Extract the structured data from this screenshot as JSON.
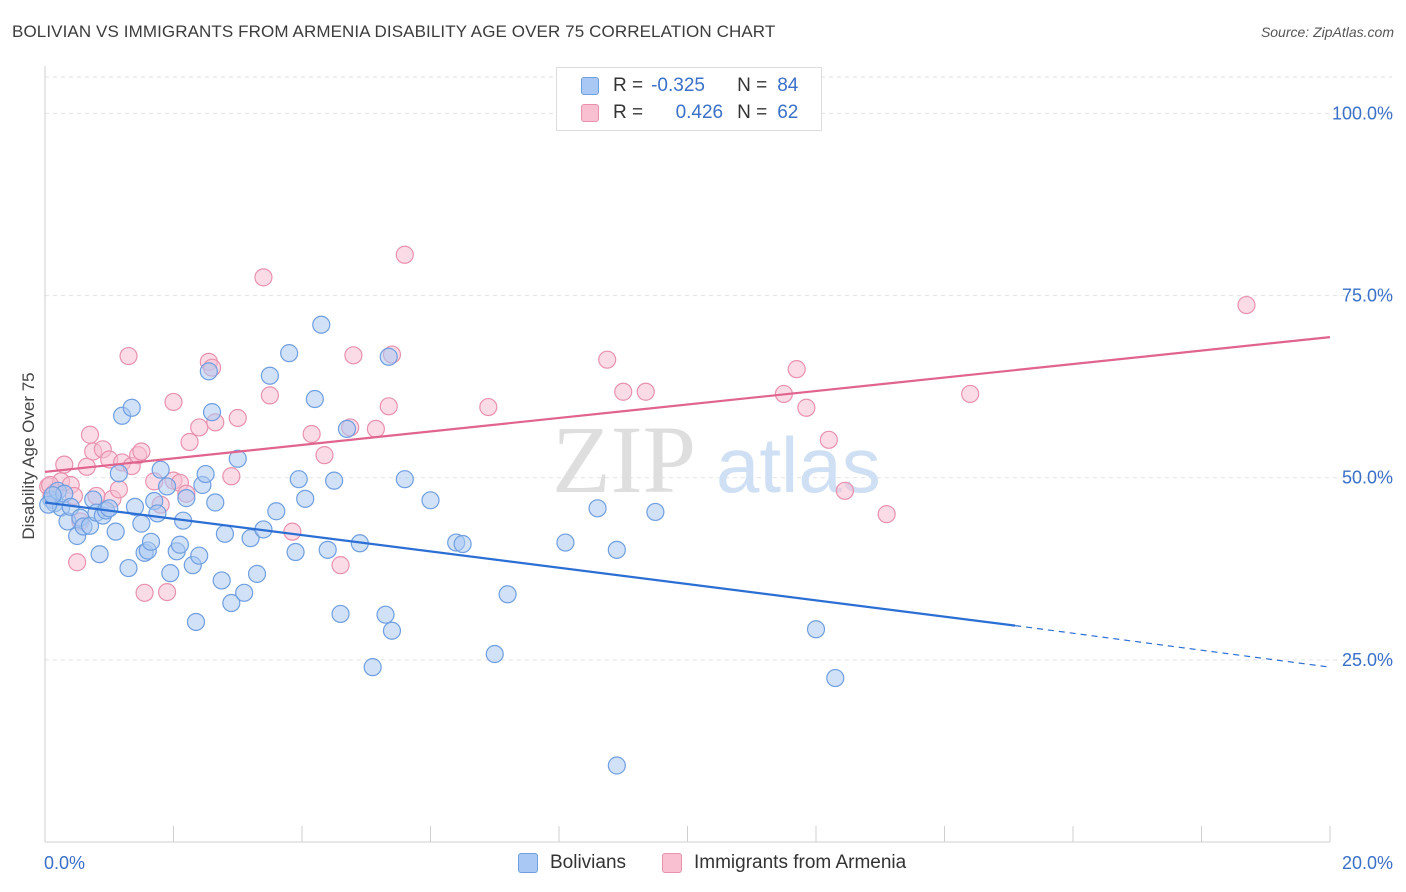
{
  "header": {
    "title": "BOLIVIAN VS IMMIGRANTS FROM ARMENIA DISABILITY AGE OVER 75 CORRELATION CHART",
    "source": "Source: ZipAtlas.com"
  },
  "watermark": {
    "zip": "ZIP",
    "atlas": "atlas"
  },
  "legend": {
    "rows": [
      {
        "r_label": "R =",
        "r_value": "-0.325",
        "n_label": "N =",
        "n_value": "84",
        "color": "#a9c8f3",
        "border": "#6f9fe0"
      },
      {
        "r_label": "R =",
        "r_value": "0.426",
        "n_label": "N =",
        "n_value": "62",
        "color": "#f8c0d1",
        "border": "#e891ad"
      }
    ]
  },
  "bottom_legend": [
    {
      "label": "Bolivians",
      "color": "#a9c8f3",
      "border": "#6f9fe0"
    },
    {
      "label": "Immigrants from Armenia",
      "color": "#f8c0d1",
      "border": "#e891ad"
    }
  ],
  "chart_data": {
    "type": "scatter",
    "title": "BOLIVIAN VS IMMIGRANTS FROM ARMENIA DISABILITY AGE OVER 75 CORRELATION CHART",
    "xlabel": "",
    "ylabel": "Disability Age Over 75",
    "xlim": [
      0,
      20
    ],
    "ylim": [
      0,
      105
    ],
    "x_tick_labels": [
      "0.0%",
      "20.0%"
    ],
    "y_tick_labels": [
      "25.0%",
      "50.0%",
      "75.0%",
      "100.0%"
    ],
    "y_ticks": [
      25,
      50,
      75,
      100
    ],
    "grid": true,
    "colors": {
      "blue": "#3a78d8",
      "pink": "#e0648e",
      "axis_label": "#3a70c8"
    },
    "series": [
      {
        "name": "Bolivians",
        "marker_fill": "#a9c8f3",
        "marker_stroke": "#6f9fe0",
        "line_color": "#2c6fd4",
        "trend": {
          "x0": 0.0,
          "y0": 46.6,
          "x1": 15.1,
          "y1": 29.7,
          "dash_to_x": 20.0,
          "dash_y": 24.0
        },
        "points": [
          [
            0.1,
            47.0
          ],
          [
            0.15,
            46.5
          ],
          [
            0.2,
            48.2
          ],
          [
            0.25,
            45.9
          ],
          [
            0.3,
            47.8
          ],
          [
            0.35,
            44.0
          ],
          [
            0.4,
            46.0
          ],
          [
            0.5,
            42.0
          ],
          [
            0.55,
            44.5
          ],
          [
            0.6,
            43.3
          ],
          [
            0.7,
            43.4
          ],
          [
            0.75,
            47.0
          ],
          [
            0.8,
            45.2
          ],
          [
            0.85,
            39.5
          ],
          [
            0.9,
            44.8
          ],
          [
            0.95,
            45.5
          ],
          [
            1.0,
            45.8
          ],
          [
            1.1,
            42.6
          ],
          [
            1.15,
            50.6
          ],
          [
            1.2,
            58.5
          ],
          [
            1.3,
            37.6
          ],
          [
            1.35,
            59.6
          ],
          [
            1.4,
            46.0
          ],
          [
            1.5,
            43.7
          ],
          [
            1.55,
            39.7
          ],
          [
            1.6,
            40.0
          ],
          [
            1.65,
            41.2
          ],
          [
            1.7,
            46.8
          ],
          [
            1.75,
            45.1
          ],
          [
            1.8,
            51.1
          ],
          [
            1.9,
            48.8
          ],
          [
            1.95,
            36.9
          ],
          [
            2.05,
            39.9
          ],
          [
            2.1,
            40.8
          ],
          [
            2.15,
            44.1
          ],
          [
            2.2,
            47.2
          ],
          [
            2.3,
            38.0
          ],
          [
            2.35,
            30.2
          ],
          [
            2.4,
            39.3
          ],
          [
            2.45,
            49.0
          ],
          [
            2.5,
            50.5
          ],
          [
            2.55,
            64.6
          ],
          [
            2.6,
            59.0
          ],
          [
            2.65,
            46.6
          ],
          [
            2.75,
            35.9
          ],
          [
            2.8,
            42.3
          ],
          [
            2.9,
            32.8
          ],
          [
            3.0,
            52.6
          ],
          [
            3.1,
            34.2
          ],
          [
            3.2,
            41.7
          ],
          [
            3.3,
            36.8
          ],
          [
            3.4,
            42.9
          ],
          [
            3.5,
            64.0
          ],
          [
            3.6,
            45.4
          ],
          [
            3.8,
            67.1
          ],
          [
            3.9,
            39.8
          ],
          [
            3.95,
            49.8
          ],
          [
            4.05,
            47.1
          ],
          [
            4.2,
            60.8
          ],
          [
            4.3,
            71.0
          ],
          [
            4.4,
            40.1
          ],
          [
            4.5,
            49.6
          ],
          [
            4.6,
            31.3
          ],
          [
            4.7,
            56.7
          ],
          [
            4.9,
            41.0
          ],
          [
            5.1,
            24.0
          ],
          [
            5.3,
            31.2
          ],
          [
            5.4,
            29.0
          ],
          [
            5.35,
            66.6
          ],
          [
            5.6,
            49.8
          ],
          [
            6.0,
            46.9
          ],
          [
            6.4,
            41.1
          ],
          [
            6.5,
            40.9
          ],
          [
            7.0,
            25.8
          ],
          [
            7.2,
            34.0
          ],
          [
            8.1,
            41.1
          ],
          [
            8.6,
            45.8
          ],
          [
            8.9,
            40.1
          ],
          [
            9.5,
            45.3
          ],
          [
            12.0,
            29.2
          ],
          [
            12.3,
            22.5
          ],
          [
            8.9,
            10.5
          ],
          [
            0.05,
            46.3
          ],
          [
            0.12,
            47.6
          ]
        ]
      },
      {
        "name": "Immigrants from Armenia",
        "marker_fill": "#f8c0d1",
        "marker_stroke": "#e891ad",
        "line_color": "#e0648e",
        "trend": {
          "x0": 0.0,
          "y0": 50.8,
          "x1": 20.0,
          "y1": 69.3
        },
        "points": [
          [
            0.05,
            48.8
          ],
          [
            0.1,
            47.5
          ],
          [
            0.15,
            48.0
          ],
          [
            0.25,
            49.5
          ],
          [
            0.3,
            51.8
          ],
          [
            0.4,
            49.0
          ],
          [
            0.45,
            47.5
          ],
          [
            0.5,
            38.4
          ],
          [
            0.55,
            44.0
          ],
          [
            0.65,
            51.5
          ],
          [
            0.7,
            55.9
          ],
          [
            0.75,
            53.6
          ],
          [
            0.8,
            47.5
          ],
          [
            0.9,
            53.9
          ],
          [
            1.0,
            52.5
          ],
          [
            1.05,
            47.1
          ],
          [
            1.15,
            48.4
          ],
          [
            1.2,
            52.1
          ],
          [
            1.3,
            66.7
          ],
          [
            1.35,
            51.6
          ],
          [
            1.45,
            53.1
          ],
          [
            1.5,
            53.6
          ],
          [
            1.55,
            34.2
          ],
          [
            1.7,
            49.5
          ],
          [
            1.8,
            46.3
          ],
          [
            1.9,
            34.3
          ],
          [
            2.0,
            49.6
          ],
          [
            2.0,
            60.4
          ],
          [
            2.1,
            49.3
          ],
          [
            2.2,
            47.8
          ],
          [
            2.25,
            54.9
          ],
          [
            2.4,
            56.9
          ],
          [
            2.55,
            65.9
          ],
          [
            2.6,
            65.1
          ],
          [
            2.65,
            57.6
          ],
          [
            2.9,
            50.2
          ],
          [
            3.0,
            58.2
          ],
          [
            3.4,
            77.5
          ],
          [
            3.5,
            61.3
          ],
          [
            3.85,
            42.6
          ],
          [
            4.15,
            56.0
          ],
          [
            4.35,
            53.1
          ],
          [
            4.6,
            38.0
          ],
          [
            4.75,
            56.9
          ],
          [
            4.8,
            66.8
          ],
          [
            5.15,
            56.7
          ],
          [
            5.35,
            59.8
          ],
          [
            5.4,
            66.9
          ],
          [
            5.6,
            80.6
          ],
          [
            6.9,
            59.7
          ],
          [
            8.75,
            66.2
          ],
          [
            9.0,
            61.8
          ],
          [
            9.35,
            61.8
          ],
          [
            11.5,
            61.5
          ],
          [
            11.7,
            64.9
          ],
          [
            11.85,
            59.6
          ],
          [
            12.2,
            55.2
          ],
          [
            12.45,
            48.2
          ],
          [
            13.1,
            45.0
          ],
          [
            14.4,
            61.5
          ],
          [
            18.7,
            73.7
          ],
          [
            0.08,
            49.0
          ]
        ]
      }
    ]
  }
}
